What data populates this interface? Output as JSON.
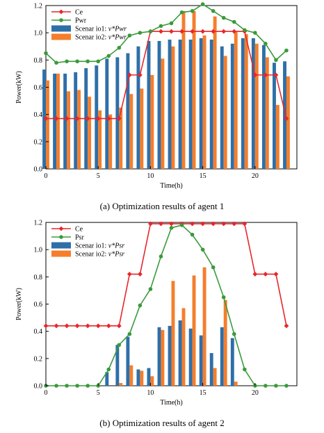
{
  "captions": {
    "a": "(a) Optimization results of agent 1",
    "b": "(b) Optimization results of agent 2"
  },
  "colors": {
    "ce": "#e8262b",
    "pwr": "#3a9a3a",
    "scenario1": "#2e6fa8",
    "scenario2": "#f47e2c"
  },
  "chart_data": [
    {
      "type": "bar",
      "xlabel": "Time(h)",
      "ylabel": "Power(kW)",
      "xlim": [
        0,
        24
      ],
      "ylim": [
        0.0,
        1.2
      ],
      "xticks": [
        "0",
        "5",
        "10",
        "15",
        "20"
      ],
      "yticks": [
        "0.0",
        "0.2",
        "0.4",
        "0.6",
        "0.8",
        "1.0",
        "1.2"
      ],
      "x": [
        0,
        1,
        2,
        3,
        4,
        5,
        6,
        7,
        8,
        9,
        10,
        11,
        12,
        13,
        14,
        15,
        16,
        17,
        18,
        19,
        20,
        21,
        22,
        23
      ],
      "legend": {
        "placement": "top-left",
        "entries": [
          {
            "key": "ce",
            "kind": "line",
            "marker": "diamond",
            "label": "Ce"
          },
          {
            "key": "pwr",
            "kind": "line",
            "marker": "circle",
            "label": "Pwr"
          },
          {
            "key": "s1",
            "kind": "bar",
            "label": "Scenar io1: ",
            "expr": "v*Pwr"
          },
          {
            "key": "s2",
            "kind": "bar",
            "label": "Scenar io2: ",
            "expr": "v*Pwr"
          }
        ]
      },
      "bars": [
        {
          "key": "s1",
          "color": "#2e6fa8",
          "values": [
            0.73,
            0.7,
            0.7,
            0.71,
            0.74,
            0.76,
            0.81,
            0.82,
            0.85,
            0.9,
            0.94,
            0.94,
            0.95,
            0.95,
            0.95,
            0.96,
            0.95,
            0.9,
            0.92,
            0.96,
            0.96,
            0.91,
            0.78,
            0.79
          ]
        },
        {
          "key": "s2",
          "color": "#f47e2c",
          "values": [
            0.65,
            0.7,
            0.57,
            0.58,
            0.53,
            0.43,
            0.4,
            0.45,
            0.55,
            0.59,
            0.69,
            0.81,
            0.9,
            1.16,
            1.16,
            0.98,
            1.12,
            0.83,
            1.01,
            0.99,
            0.92,
            0.82,
            0.47,
            0.68
          ]
        }
      ],
      "lines": [
        {
          "key": "ce",
          "color": "#e8262b",
          "marker": "diamond",
          "values": [
            0.37,
            0.37,
            0.37,
            0.37,
            0.37,
            0.37,
            0.37,
            0.37,
            0.69,
            0.69,
            1.01,
            1.01,
            1.01,
            1.01,
            1.01,
            1.01,
            1.01,
            1.01,
            1.01,
            1.01,
            0.69,
            0.69,
            0.69,
            0.37
          ]
        },
        {
          "key": "pwr",
          "color": "#3a9a3a",
          "marker": "circle",
          "values": [
            0.85,
            0.78,
            0.79,
            0.79,
            0.79,
            0.79,
            0.83,
            0.89,
            0.98,
            1.0,
            1.01,
            1.05,
            1.07,
            1.15,
            1.16,
            1.21,
            1.16,
            1.11,
            1.08,
            1.02,
            1.0,
            0.92,
            0.8,
            0.87
          ]
        }
      ]
    },
    {
      "type": "bar",
      "xlabel": "Time(h)",
      "ylabel": "Power(kW)",
      "xlim": [
        0,
        24
      ],
      "ylim": [
        0.0,
        1.2
      ],
      "xticks": [
        "0",
        "5",
        "10",
        "15",
        "20"
      ],
      "yticks": [
        "0.0",
        "0.2",
        "0.4",
        "0.6",
        "0.8",
        "1.0",
        "1.2"
      ],
      "x": [
        0,
        1,
        2,
        3,
        4,
        5,
        6,
        7,
        8,
        9,
        10,
        11,
        12,
        13,
        14,
        15,
        16,
        17,
        18,
        19,
        20,
        21,
        22,
        23
      ],
      "legend": {
        "placement": "top-left",
        "entries": [
          {
            "key": "ce",
            "kind": "line",
            "marker": "diamond",
            "label": "Ce"
          },
          {
            "key": "psr",
            "kind": "line",
            "marker": "circle",
            "label": "Psr"
          },
          {
            "key": "s1",
            "kind": "bar",
            "label": "Scenar io1: ",
            "expr": "v*Psr"
          },
          {
            "key": "s2",
            "kind": "bar",
            "label": "Scenar io2: ",
            "expr": "v*Psr"
          }
        ]
      },
      "bars": [
        {
          "key": "s1",
          "color": "#2e6fa8",
          "values": [
            0,
            0,
            0,
            0,
            0,
            0,
            0.1,
            0.3,
            0.36,
            0.12,
            0.13,
            0.43,
            0.44,
            0.48,
            0.42,
            0.37,
            0.24,
            0.43,
            0.35,
            0,
            0,
            0,
            0,
            0
          ]
        },
        {
          "key": "s2",
          "color": "#f47e2c",
          "values": [
            0,
            0,
            0,
            0,
            0,
            0,
            0,
            0.02,
            0.15,
            0.11,
            0.07,
            0.41,
            0.77,
            0.57,
            0.81,
            0.87,
            0.13,
            0.63,
            0.03,
            0,
            0,
            0,
            0,
            0
          ]
        }
      ],
      "lines": [
        {
          "key": "ce",
          "color": "#e8262b",
          "marker": "diamond",
          "values": [
            0.44,
            0.44,
            0.44,
            0.44,
            0.44,
            0.44,
            0.44,
            0.44,
            0.82,
            0.82,
            1.19,
            1.19,
            1.19,
            1.19,
            1.19,
            1.19,
            1.19,
            1.19,
            1.19,
            1.19,
            0.82,
            0.82,
            0.82,
            0.44
          ]
        },
        {
          "key": "psr",
          "color": "#3a9a3a",
          "marker": "circle",
          "values": [
            0,
            0,
            0,
            0,
            0,
            0,
            0.12,
            0.3,
            0.38,
            0.59,
            0.71,
            0.95,
            1.16,
            1.18,
            1.11,
            1.0,
            0.87,
            0.65,
            0.38,
            0.12,
            0,
            0,
            0,
            0
          ]
        }
      ]
    }
  ]
}
